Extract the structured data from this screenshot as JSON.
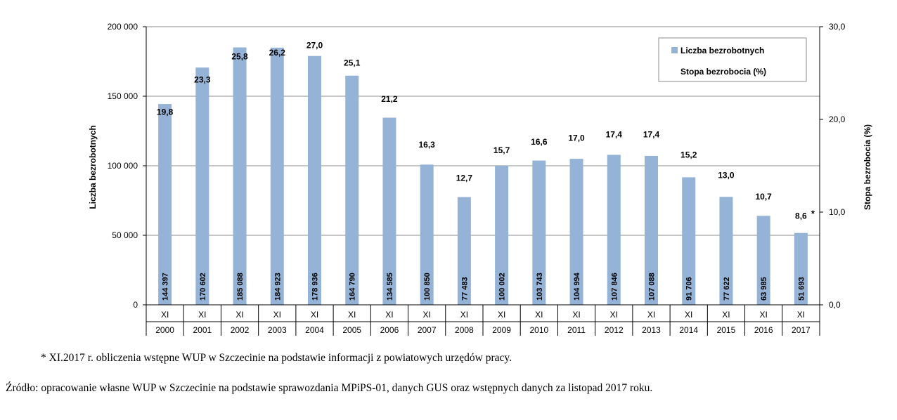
{
  "chart_data": {
    "type": "bar",
    "y_left_label": "Liczba bezrobotnych",
    "y_right_label": "Stopa bezrobocia (%)",
    "y_left_ticks": [
      "200 000",
      "150 000",
      "100 000",
      "50 000",
      "0"
    ],
    "y_left_lim": [
      0,
      200000
    ],
    "y_right_ticks": [
      "30,0",
      "20,0",
      "10,0",
      "0,0"
    ],
    "y_right_lim": [
      0,
      30
    ],
    "grid": true,
    "legend_position": "top-right",
    "categories_month": [
      "XI",
      "XI",
      "XI",
      "XI",
      "XI",
      "XI",
      "XI",
      "XI",
      "XI",
      "XI",
      "XI",
      "XI",
      "XI",
      "XI",
      "XI",
      "XI",
      "XI",
      "XI"
    ],
    "categories_year": [
      "2000",
      "2001",
      "2002",
      "2003",
      "2004",
      "2005",
      "2006",
      "2007",
      "2008",
      "2009",
      "2010",
      "2011",
      "2012",
      "2013",
      "2014",
      "2015",
      "2016",
      "2017"
    ],
    "series": [
      {
        "name": "Liczba bezrobotnych",
        "color": "#95b3d7",
        "values": [
          144397,
          170602,
          185088,
          184923,
          178936,
          164790,
          134585,
          100850,
          77483,
          100002,
          103743,
          104994,
          107846,
          107088,
          91706,
          77622,
          63985,
          51693
        ],
        "value_labels": [
          "144 397",
          "170 602",
          "185 088",
          "184 923",
          "178 936",
          "164 790",
          "134 585",
          "100 850",
          "77 483",
          "100 002",
          "103 743",
          "104 994",
          "107 846",
          "107 088",
          "91 706",
          "77 622",
          "63 985",
          "51 693"
        ]
      },
      {
        "name": "Stopa bezrobocia (%)",
        "values": [
          19.8,
          23.3,
          25.8,
          26.2,
          27.0,
          25.1,
          21.2,
          16.3,
          12.7,
          15.7,
          16.6,
          17.0,
          17.4,
          17.4,
          15.2,
          13.0,
          10.7,
          8.6
        ],
        "value_labels": [
          "19,8",
          "23,3",
          "25,8",
          "26,2",
          "27,0",
          "25,1",
          "21,2",
          "16,3",
          "12,7",
          "15,7",
          "16,6",
          "17,0",
          "17,4",
          "17,4",
          "15,2",
          "13,0",
          "10,7",
          "8,6"
        ]
      }
    ],
    "annotation_asterisk": "*"
  },
  "notes": {
    "footnote": "* XI.2017 r.  obliczenia wstępne WUP w Szczecinie na podstawie informacji z powiatowych urzędów pracy.",
    "source": "Źródło: opracowanie własne WUP w Szczecinie na podstawie sprawozdania MPiPS-01, danych GUS oraz wstępnych danych za listopad 2017 roku."
  }
}
